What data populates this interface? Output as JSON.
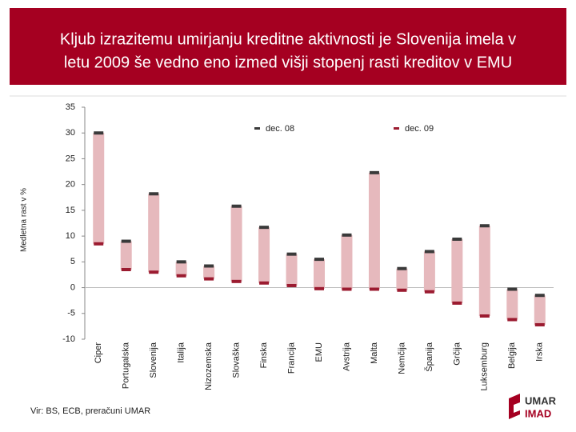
{
  "chart_data": {
    "type": "range",
    "title_lines": [
      "Kljub izrazitemu umirjanju kreditne aktivnosti je Slovenija imela v",
      "letu 2009 še vedno eno izmed višji stopenj rasti kreditov v EMU"
    ],
    "y_label": "Medletna rast v  %",
    "categories": [
      "Ciper",
      "Portugalska",
      "Slovenija",
      "Italija",
      "Nizozemska",
      "Slovaška",
      "Finska",
      "Francija",
      "EMU",
      "Avstrija",
      "Malta",
      "Nemčija",
      "Španija",
      "Grčija",
      "Luksemburg",
      "Belgija",
      "Irska"
    ],
    "series": [
      {
        "name": "dec. 08",
        "color": "#3a3a3a",
        "values": [
          30,
          9,
          18.2,
          5,
          4.2,
          15.8,
          11.7,
          6.5,
          5.5,
          10.2,
          22.3,
          3.7,
          7,
          9.4,
          12,
          -0.3,
          -1.5
        ]
      },
      {
        "name": "dec. 09",
        "color": "#9b1b30",
        "values": [
          8.5,
          3.5,
          3,
          2.3,
          1.7,
          1.2,
          0.9,
          0.4,
          -0.2,
          -0.3,
          -0.3,
          -0.5,
          -0.8,
          -3,
          -5.5,
          -6.2,
          -7.2
        ]
      }
    ],
    "range_color": "#e6b9bd",
    "ylim": [
      -10,
      35
    ],
    "yticks": [
      -10,
      -5,
      0,
      5,
      10,
      15,
      20,
      25,
      30,
      35
    ],
    "source": "Vir: BS, ECB, preračuni UMAR"
  },
  "logo": [
    "UMAR",
    "IMAD"
  ]
}
